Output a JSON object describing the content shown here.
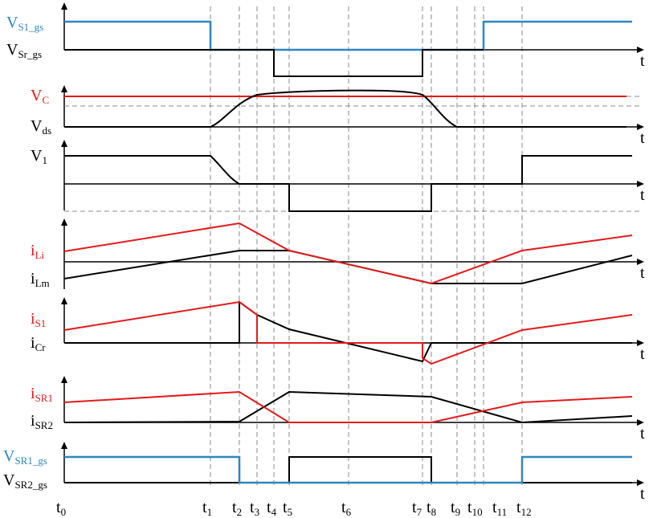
{
  "colors": {
    "black": "#000000",
    "red": "#e41a1a",
    "blue": "#2e86c1",
    "dash": "#8a8a8a"
  },
  "time_labels": [
    {
      "base": "t",
      "sub": "0"
    },
    {
      "base": "t",
      "sub": "1"
    },
    {
      "base": "t",
      "sub": "2"
    },
    {
      "base": "t",
      "sub": "3"
    },
    {
      "base": "t",
      "sub": "4"
    },
    {
      "base": "t",
      "sub": "5"
    },
    {
      "base": "t",
      "sub": "6"
    },
    {
      "base": "t",
      "sub": "7"
    },
    {
      "base": "t",
      "sub": "8"
    },
    {
      "base": "t",
      "sub": "9"
    },
    {
      "base": "t",
      "sub": "10"
    },
    {
      "base": "t",
      "sub": "11"
    },
    {
      "base": "t",
      "sub": "12"
    }
  ],
  "axis_time_label": "t",
  "panels": [
    {
      "id": "p1",
      "labels": [
        {
          "base": "V",
          "sub": "S1_gs",
          "color": "blue"
        },
        {
          "base": "V",
          "sub": "Sr_gs",
          "color": "black"
        }
      ]
    },
    {
      "id": "p2",
      "labels": [
        {
          "base": "V",
          "sub": "C",
          "color": "red"
        },
        {
          "base": "V",
          "sub": "ds",
          "color": "black"
        }
      ]
    },
    {
      "id": "p3",
      "labels": [
        {
          "base": "V",
          "sub": "1",
          "color": "black"
        }
      ]
    },
    {
      "id": "p4",
      "labels": [
        {
          "base": "i",
          "sub": "Li",
          "color": "red"
        },
        {
          "base": "i",
          "sub": "Lm",
          "color": "black"
        }
      ]
    },
    {
      "id": "p5",
      "labels": [
        {
          "base": "i",
          "sub": "S1",
          "color": "red"
        },
        {
          "base": "i",
          "sub": "Cr",
          "color": "black"
        }
      ]
    },
    {
      "id": "p6",
      "labels": [
        {
          "base": "i",
          "sub": "SR1",
          "color": "red"
        },
        {
          "base": "i",
          "sub": "SR2",
          "color": "black"
        }
      ]
    },
    {
      "id": "p7",
      "labels": [
        {
          "base": "V",
          "sub": "SR1_gs",
          "color": "blue"
        },
        {
          "base": "V",
          "sub": "SR2_gs",
          "color": "black"
        }
      ]
    }
  ]
}
